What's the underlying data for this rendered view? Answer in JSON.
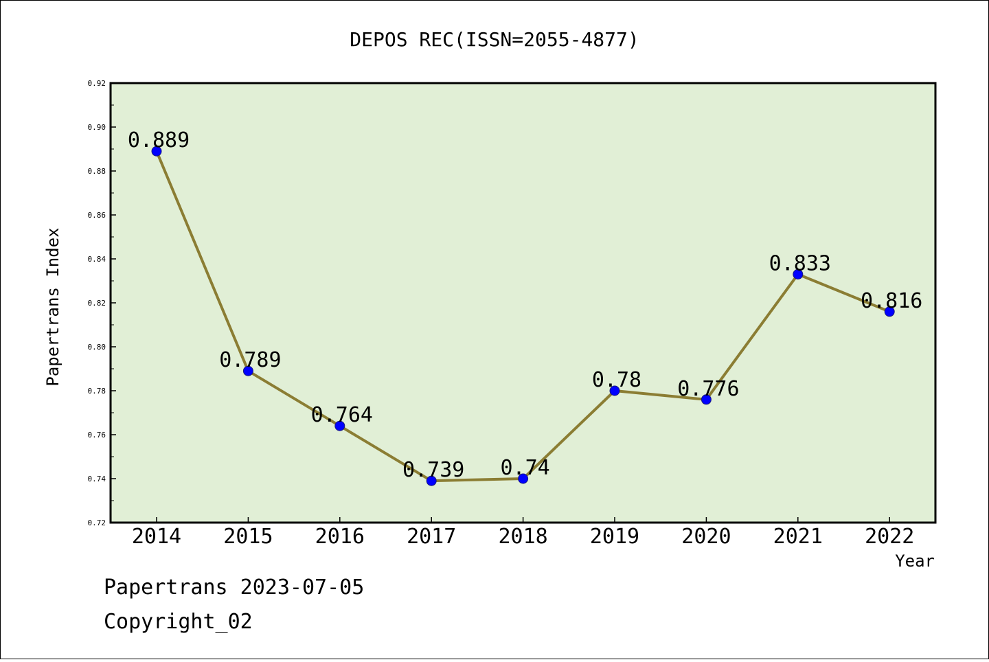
{
  "chart_data": {
    "type": "line",
    "title": "DEPOS REC(ISSN=2055-4877)",
    "xlabel": "Year",
    "ylabel": "Papertrans Index",
    "categories": [
      "2014",
      "2015",
      "2016",
      "2017",
      "2018",
      "2019",
      "2020",
      "2021",
      "2022"
    ],
    "values": [
      0.889,
      0.789,
      0.764,
      0.739,
      0.74,
      0.78,
      0.776,
      0.833,
      0.816
    ],
    "data_labels": [
      "0.889",
      "0.789",
      "0.764",
      "0.739",
      "0.74",
      "0.78",
      "0.776",
      "0.833",
      "0.816"
    ],
    "ylim": [
      0.72,
      0.92
    ],
    "yticks": [
      "0.72",
      "0.74",
      "0.76",
      "0.78",
      "0.80",
      "0.82",
      "0.84",
      "0.86",
      "0.88",
      "0.90",
      "0.92"
    ],
    "grid": false,
    "legend": "none",
    "colors": {
      "plot_background": "#e1efd6",
      "line": "#8b7d33",
      "marker": "#0000ff"
    }
  },
  "footer": {
    "line1": "Papertrans 2023-07-05",
    "line2": "Copyright_02"
  }
}
